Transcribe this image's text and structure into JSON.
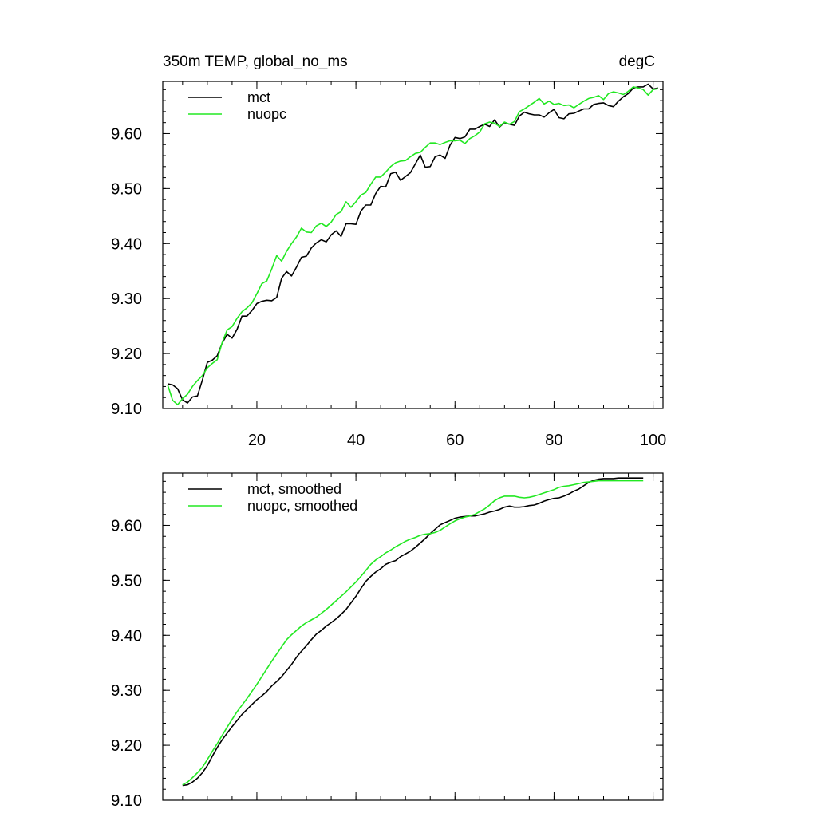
{
  "chart_data": [
    {
      "type": "line",
      "title_left": "350m TEMP, global_no_ms",
      "title_right": "degC",
      "xlim": [
        1,
        102
      ],
      "ylim": [
        9.1,
        9.695
      ],
      "xticks": [
        20,
        40,
        60,
        80,
        100
      ],
      "xtick_labels": [
        "20",
        "40",
        "60",
        "80",
        "100"
      ],
      "yticks": [
        9.1,
        9.2,
        9.3,
        9.4,
        9.5,
        9.6
      ],
      "ytick_labels": [
        "9.10",
        "9.20",
        "9.30",
        "9.40",
        "9.50",
        "9.60"
      ],
      "legend_position": "top-left",
      "series": [
        {
          "name": "mct",
          "color": "#000000",
          "x": [
            2,
            3,
            4,
            5,
            6,
            7,
            8,
            9,
            10,
            11,
            12,
            13,
            14,
            15,
            16,
            17,
            18,
            19,
            20,
            21,
            22,
            23,
            24,
            25,
            26,
            27,
            28,
            29,
            30,
            31,
            32,
            33,
            34,
            35,
            36,
            37,
            38,
            39,
            40,
            41,
            42,
            43,
            44,
            45,
            46,
            47,
            48,
            49,
            50,
            51,
            52,
            53,
            54,
            55,
            56,
            57,
            58,
            59,
            60,
            61,
            62,
            63,
            64,
            65,
            66,
            67,
            68,
            69,
            70,
            71,
            72,
            73,
            74,
            75,
            76,
            77,
            78,
            79,
            80,
            81,
            82,
            83,
            84,
            85,
            86,
            87,
            88,
            89,
            90,
            91,
            92,
            93,
            94,
            95,
            96,
            97,
            98,
            99,
            100,
            101
          ],
          "values": [
            9.145,
            9.143,
            9.136,
            9.116,
            9.11,
            9.121,
            9.123,
            9.152,
            9.184,
            9.188,
            9.196,
            9.219,
            9.235,
            9.228,
            9.244,
            9.268,
            9.268,
            9.278,
            9.291,
            9.295,
            9.297,
            9.296,
            9.302,
            9.337,
            9.349,
            9.341,
            9.357,
            9.375,
            9.377,
            9.392,
            9.401,
            9.407,
            9.403,
            9.416,
            9.423,
            9.413,
            9.436,
            9.436,
            9.435,
            9.459,
            9.47,
            9.47,
            9.491,
            9.504,
            9.503,
            9.527,
            9.53,
            9.515,
            9.522,
            9.529,
            9.545,
            9.561,
            9.539,
            9.54,
            9.558,
            9.561,
            9.555,
            9.579,
            9.593,
            9.591,
            9.594,
            9.608,
            9.608,
            9.613,
            9.617,
            9.613,
            9.625,
            9.612,
            9.62,
            9.617,
            9.615,
            9.632,
            9.639,
            9.636,
            9.634,
            9.634,
            9.63,
            9.638,
            9.644,
            9.629,
            9.627,
            9.636,
            9.637,
            9.641,
            9.645,
            9.645,
            9.653,
            9.655,
            9.656,
            9.651,
            9.649,
            9.659,
            9.667,
            9.673,
            9.683,
            9.685,
            9.685,
            9.69,
            9.681,
            9.683
          ]
        },
        {
          "name": "nuopc",
          "color": "#22e822",
          "x": [
            2,
            3,
            4,
            5,
            6,
            7,
            8,
            9,
            10,
            11,
            12,
            13,
            14,
            15,
            16,
            17,
            18,
            19,
            20,
            21,
            22,
            23,
            24,
            25,
            26,
            27,
            28,
            29,
            30,
            31,
            32,
            33,
            34,
            35,
            36,
            37,
            38,
            39,
            40,
            41,
            42,
            43,
            44,
            45,
            46,
            47,
            48,
            49,
            50,
            51,
            52,
            53,
            54,
            55,
            56,
            57,
            58,
            59,
            60,
            61,
            62,
            63,
            64,
            65,
            66,
            67,
            68,
            69,
            70,
            71,
            72,
            73,
            74,
            75,
            76,
            77,
            78,
            79,
            80,
            81,
            82,
            83,
            84,
            85,
            86,
            87,
            88,
            89,
            90,
            91,
            92,
            93,
            94,
            95,
            96,
            97,
            98,
            99,
            100,
            101
          ],
          "values": [
            9.143,
            9.115,
            9.107,
            9.118,
            9.126,
            9.14,
            9.151,
            9.16,
            9.174,
            9.182,
            9.189,
            9.22,
            9.243,
            9.249,
            9.264,
            9.276,
            9.283,
            9.292,
            9.309,
            9.327,
            9.332,
            9.354,
            9.378,
            9.368,
            9.386,
            9.4,
            9.412,
            9.428,
            9.421,
            9.42,
            9.432,
            9.437,
            9.431,
            9.439,
            9.453,
            9.458,
            9.476,
            9.466,
            9.476,
            9.488,
            9.493,
            9.508,
            9.521,
            9.521,
            9.53,
            9.54,
            9.547,
            9.55,
            9.551,
            9.558,
            9.564,
            9.566,
            9.575,
            9.583,
            9.583,
            9.58,
            9.584,
            9.587,
            9.587,
            9.588,
            9.582,
            9.591,
            9.596,
            9.603,
            9.618,
            9.621,
            9.619,
            9.613,
            9.621,
            9.617,
            9.622,
            9.64,
            9.645,
            9.651,
            9.657,
            9.664,
            9.654,
            9.659,
            9.653,
            9.655,
            9.651,
            9.652,
            9.647,
            9.653,
            9.659,
            9.664,
            9.666,
            9.669,
            9.662,
            9.673,
            9.676,
            9.674,
            9.671,
            9.677,
            9.685,
            9.683,
            9.68,
            9.67,
            9.68,
            9.682
          ]
        }
      ]
    },
    {
      "type": "line",
      "xlim": [
        1,
        102
      ],
      "ylim": [
        9.1,
        9.695
      ],
      "xticks": [
        20,
        40,
        60,
        80,
        100
      ],
      "yticks": [
        9.1,
        9.2,
        9.3,
        9.4,
        9.5,
        9.6
      ],
      "ytick_labels": [
        "9.10",
        "9.20",
        "9.30",
        "9.40",
        "9.50",
        "9.60"
      ],
      "legend_position": "top-left",
      "series": [
        {
          "name": "mct, smoothed",
          "color": "#000000",
          "x": [
            5,
            6,
            7,
            8,
            9,
            10,
            11,
            12,
            13,
            14,
            15,
            16,
            17,
            18,
            19,
            20,
            21,
            22,
            23,
            24,
            25,
            26,
            27,
            28,
            29,
            30,
            31,
            32,
            33,
            34,
            35,
            36,
            37,
            38,
            39,
            40,
            41,
            42,
            43,
            44,
            45,
            46,
            47,
            48,
            49,
            50,
            51,
            52,
            53,
            54,
            55,
            56,
            57,
            58,
            59,
            60,
            61,
            62,
            63,
            64,
            65,
            66,
            67,
            68,
            69,
            70,
            71,
            72,
            73,
            74,
            75,
            76,
            77,
            78,
            79,
            80,
            81,
            82,
            83,
            84,
            85,
            86,
            87,
            88,
            89,
            90,
            91,
            92,
            93,
            94,
            95,
            96,
            97,
            98
          ],
          "values": [
            9.127,
            9.128,
            9.133,
            9.14,
            9.15,
            9.163,
            9.18,
            9.196,
            9.21,
            9.222,
            9.234,
            9.245,
            9.256,
            9.265,
            9.274,
            9.283,
            9.29,
            9.298,
            9.308,
            9.316,
            9.325,
            9.336,
            9.347,
            9.36,
            9.371,
            9.381,
            9.392,
            9.402,
            9.409,
            9.417,
            9.423,
            9.43,
            9.438,
            9.447,
            9.459,
            9.471,
            9.485,
            9.498,
            9.507,
            9.515,
            9.521,
            9.529,
            9.533,
            9.536,
            9.543,
            9.548,
            9.553,
            9.56,
            9.568,
            9.576,
            9.585,
            9.593,
            9.601,
            9.605,
            9.609,
            9.613,
            9.615,
            9.616,
            9.617,
            9.617,
            9.619,
            9.621,
            9.624,
            9.626,
            9.629,
            9.633,
            9.635,
            9.633,
            9.633,
            9.634,
            9.636,
            9.637,
            9.64,
            9.644,
            9.647,
            9.649,
            9.65,
            9.653,
            9.657,
            9.662,
            9.666,
            9.672,
            9.678,
            9.682,
            9.684,
            9.685,
            9.685,
            9.685,
            9.686,
            9.686,
            9.686,
            9.686,
            9.686,
            9.686
          ]
        },
        {
          "name": "nuopc, smoothed",
          "color": "#22e822",
          "x": [
            5,
            6,
            7,
            8,
            9,
            10,
            11,
            12,
            13,
            14,
            15,
            16,
            17,
            18,
            19,
            20,
            21,
            22,
            23,
            24,
            25,
            26,
            27,
            28,
            29,
            30,
            31,
            32,
            33,
            34,
            35,
            36,
            37,
            38,
            39,
            40,
            41,
            42,
            43,
            44,
            45,
            46,
            47,
            48,
            49,
            50,
            51,
            52,
            53,
            54,
            55,
            56,
            57,
            58,
            59,
            60,
            61,
            62,
            63,
            64,
            65,
            66,
            67,
            68,
            69,
            70,
            71,
            72,
            73,
            74,
            75,
            76,
            77,
            78,
            79,
            80,
            81,
            82,
            83,
            84,
            85,
            86,
            87,
            88,
            89,
            90,
            91,
            92,
            93,
            94,
            95,
            96,
            97,
            98
          ],
          "values": [
            9.128,
            9.133,
            9.141,
            9.15,
            9.16,
            9.174,
            9.189,
            9.203,
            9.218,
            9.233,
            9.247,
            9.261,
            9.273,
            9.285,
            9.298,
            9.311,
            9.325,
            9.339,
            9.353,
            9.366,
            9.379,
            9.392,
            9.401,
            9.409,
            9.417,
            9.423,
            9.428,
            9.433,
            9.44,
            9.447,
            9.455,
            9.463,
            9.471,
            9.479,
            9.488,
            9.497,
            9.507,
            9.518,
            9.529,
            9.537,
            9.543,
            9.55,
            9.555,
            9.561,
            9.566,
            9.571,
            9.575,
            9.578,
            9.582,
            9.584,
            9.585,
            9.587,
            9.591,
            9.597,
            9.603,
            9.608,
            9.612,
            9.615,
            9.617,
            9.62,
            9.625,
            9.63,
            9.637,
            9.645,
            9.65,
            9.653,
            9.653,
            9.653,
            9.651,
            9.65,
            9.651,
            9.653,
            9.656,
            9.659,
            9.662,
            9.665,
            9.669,
            9.671,
            9.672,
            9.674,
            9.676,
            9.678,
            9.679,
            9.68,
            9.681,
            9.681,
            9.681,
            9.681,
            9.681,
            9.681,
            9.681,
            9.681,
            9.681,
            9.681
          ]
        }
      ]
    }
  ]
}
